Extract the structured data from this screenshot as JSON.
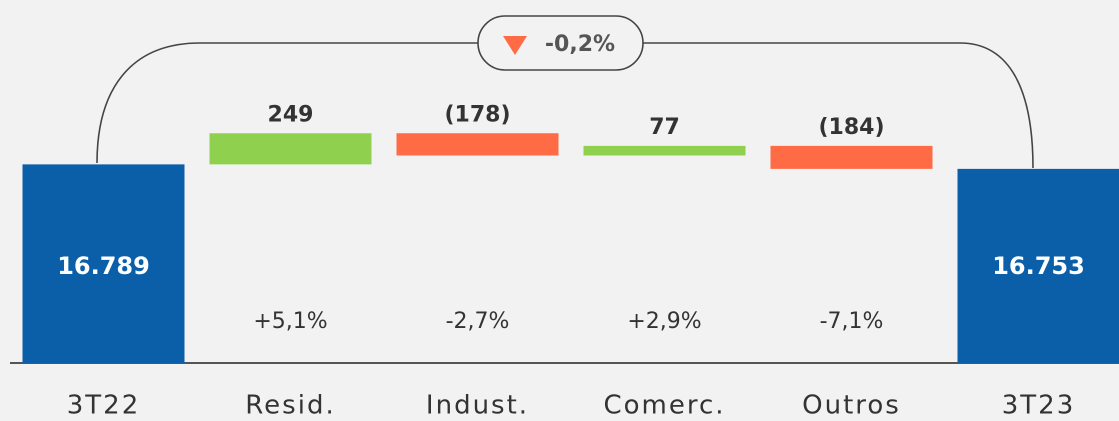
{
  "chart_data": {
    "type": "waterfall",
    "categories": [
      "3T22",
      "Resid.",
      "Indust.",
      "Comerc.",
      "Outros",
      "3T23"
    ],
    "measures": [
      "total",
      "relative",
      "relative",
      "relative",
      "relative",
      "total"
    ],
    "values": [
      16789,
      249,
      -178,
      77,
      -184,
      16753
    ],
    "value_labels": [
      "16.789",
      "249",
      "(178)",
      "77",
      "(184)",
      "16.753"
    ],
    "percent_labels": [
      null,
      "+5,1%",
      "-2,7%",
      "+2,9%",
      "-7,1%",
      null
    ],
    "total_change_label": "-0,2%",
    "colors": {
      "total": "#0b5fa8",
      "increase": "#8fd14f",
      "decrease": "#ff6b45"
    },
    "ylim": [
      15200,
      17100
    ]
  }
}
